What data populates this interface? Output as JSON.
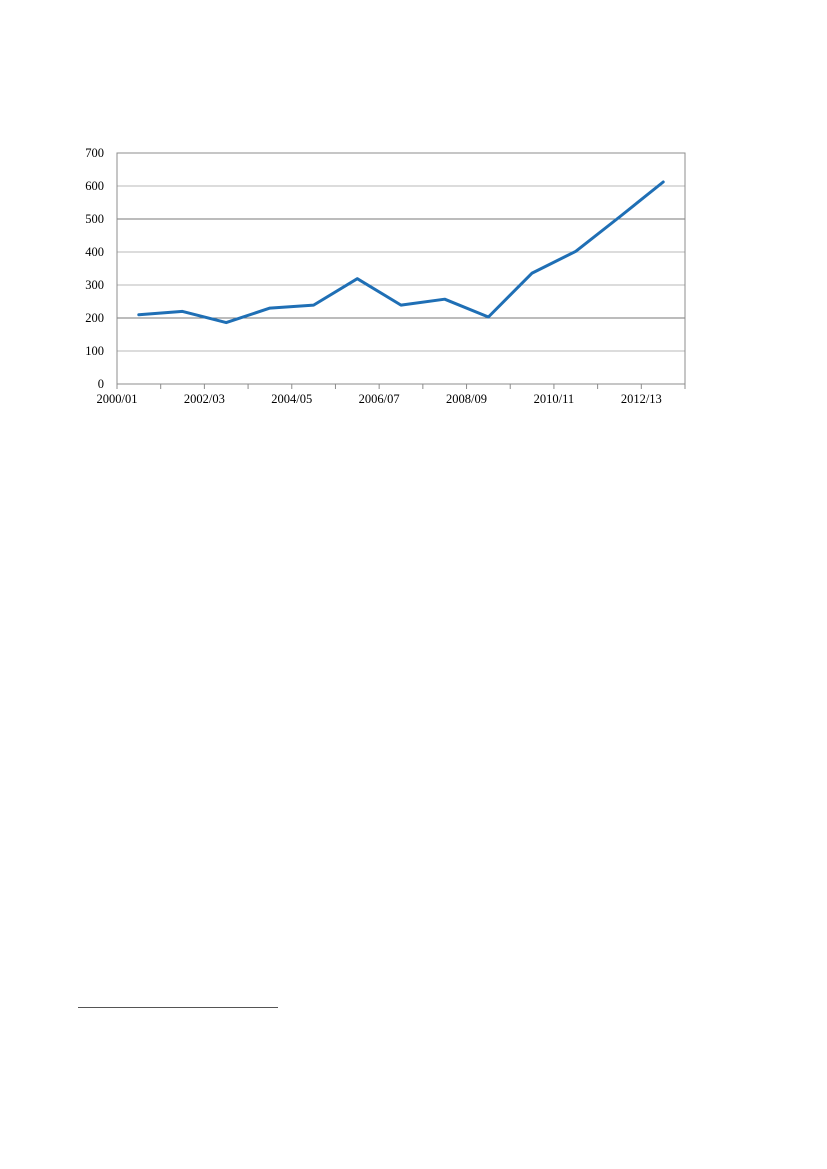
{
  "chart_data": {
    "type": "line",
    "x": [
      "2000/01",
      "2001/02",
      "2002/03",
      "2003/04",
      "2004/05",
      "2005/06",
      "2006/07",
      "2007/08",
      "2008/09",
      "2009/10",
      "2010/11",
      "2011/12",
      "2012/13"
    ],
    "x_tick_labels": [
      "2000/01",
      "2002/03",
      "2004/05",
      "2006/07",
      "2008/09",
      "2010/11",
      "2012/13"
    ],
    "series": [
      {
        "values": [
          210,
          220,
          186,
          230,
          239,
          319,
          239,
          257,
          203,
          336,
          402,
          506,
          612
        ],
        "color": "#1F6FB5"
      }
    ],
    "ylim": [
      0,
      700
    ],
    "y_ticks": [
      0,
      100,
      200,
      300,
      400,
      500,
      600,
      700
    ],
    "grid": true,
    "title": "",
    "xlabel": "",
    "ylabel": ""
  }
}
